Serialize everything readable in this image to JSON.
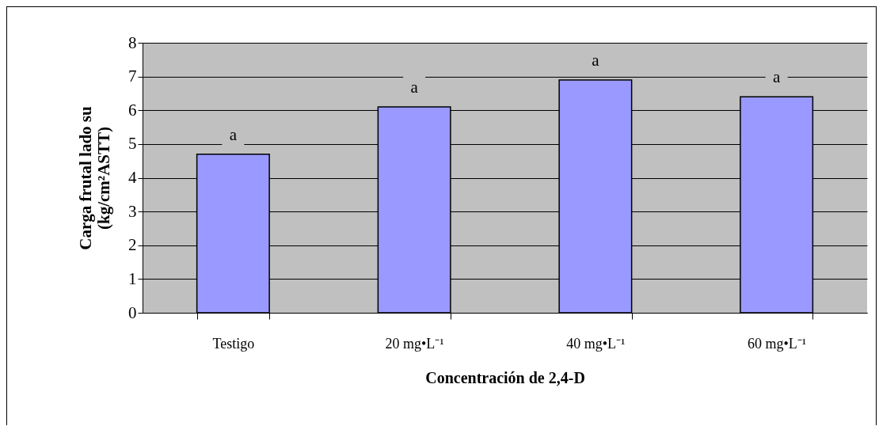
{
  "chart_data": {
    "type": "bar",
    "xlabel": "Concentración de 2,4-D",
    "ylabel": "Carga frutal lado su\n(kg/cm²ASTT)",
    "categories": [
      "Testigo",
      "20 mg•L⁻¹",
      "40 mg•L⁻¹",
      "60 mg•L⁻¹"
    ],
    "values": [
      4.7,
      6.1,
      6.9,
      6.4
    ],
    "color": "#9999ff",
    "ylim": [
      0,
      8
    ],
    "yticks": [
      0,
      1,
      2,
      3,
      4,
      5,
      6,
      7,
      8
    ],
    "grid": "y",
    "annotations": [
      "a",
      "a",
      "a",
      "a"
    ]
  }
}
